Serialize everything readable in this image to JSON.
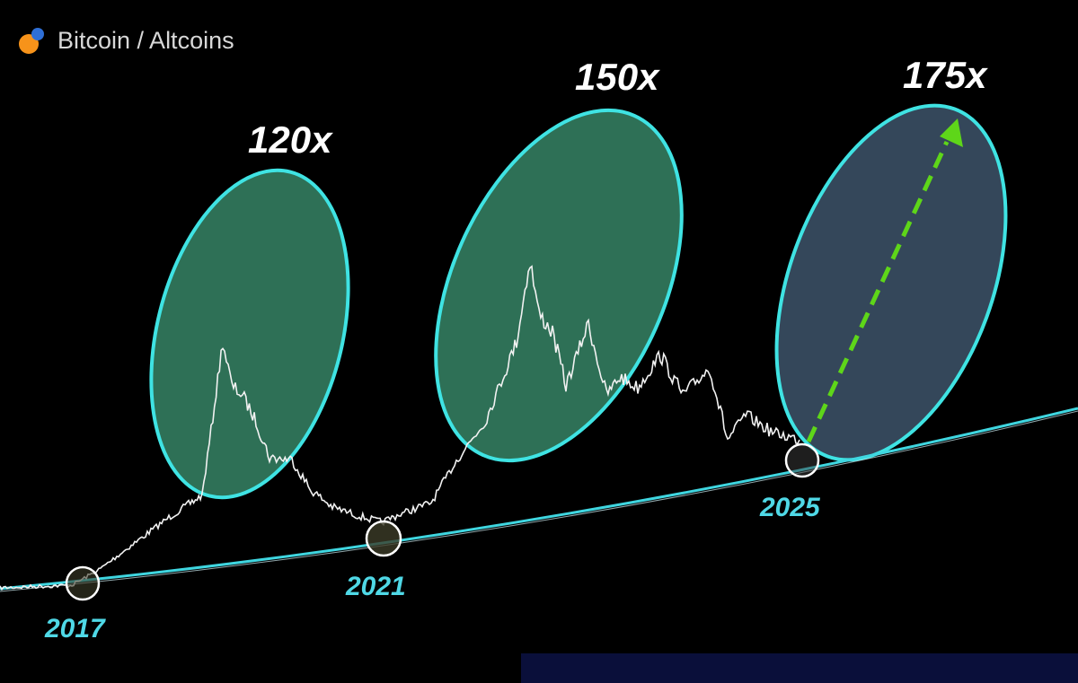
{
  "header": {
    "title": "Bitcoin / Altcoins"
  },
  "annotations": [
    {
      "label": "120x"
    },
    {
      "label": "150x"
    },
    {
      "label": "175x"
    }
  ],
  "cycle_lows": [
    {
      "label": "2017"
    },
    {
      "label": "2021"
    },
    {
      "label": "2025"
    }
  ]
}
